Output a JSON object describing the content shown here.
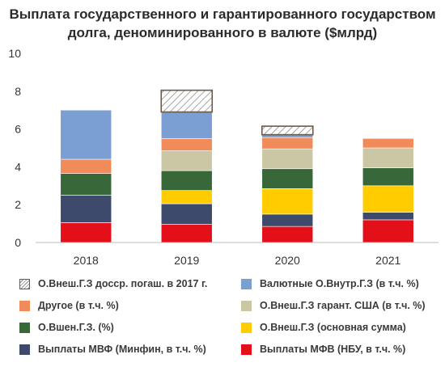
{
  "title": "Выплата государственного и гарантированного государством долга, деноминированного в валюте ($млрд)",
  "chart_data": {
    "type": "bar",
    "stacked": true,
    "categories": [
      "2018",
      "2019",
      "2020",
      "2021"
    ],
    "ylim": [
      0,
      10
    ],
    "yticks": [
      0,
      2,
      4,
      6,
      8,
      10
    ],
    "grid": false,
    "legend_position": "bottom",
    "series": [
      {
        "name": "Выплаты МФВ (НБУ, в т.ч. %)",
        "color": "#e3101a",
        "values": [
          1.05,
          0.97,
          0.85,
          1.2
        ]
      },
      {
        "name": "Выплаты МВФ (Минфин, в т.ч. %)",
        "color": "#3d4a6b",
        "values": [
          1.45,
          1.08,
          0.65,
          0.4
        ]
      },
      {
        "name": "О.Внеш.Г.З (основная сумма)",
        "color": "#ffcc00",
        "values": [
          0,
          0.7,
          1.35,
          1.4
        ]
      },
      {
        "name": "О.Вшен.Г.З. (%)",
        "color": "#38683a",
        "values": [
          1.15,
          1.05,
          1.05,
          0.95
        ]
      },
      {
        "name": "О.Внеш.Г.З гарант. США (в т.ч. %)",
        "color": "#cbc7a5",
        "values": [
          0,
          1.05,
          1.05,
          1.05
        ]
      },
      {
        "name": "Другое (в т.ч. %)",
        "color": "#f28b5a",
        "values": [
          0.75,
          0.65,
          0.6,
          0.5
        ]
      },
      {
        "name": "Валютные О.Внутр.Г.З (в т.ч. %)",
        "color": "#7b9fd3",
        "values": [
          2.6,
          1.4,
          0.15,
          0
        ]
      },
      {
        "name": "О.Внеш.Г.З досср. погаш. в 2017 г.",
        "color": "#ffffff",
        "pattern": "hatch",
        "values": [
          0,
          1.15,
          0.45,
          0
        ]
      }
    ]
  },
  "legend": [
    {
      "label": "О.Внеш.Г.З досср. погаш. в 2017 г.",
      "color": "#ffffff",
      "pattern": "hatch"
    },
    {
      "label": "Валютные О.Внутр.Г.З (в т.ч. %)",
      "color": "#7b9fd3"
    },
    {
      "label": "Другое (в т.ч. %)",
      "color": "#f28b5a"
    },
    {
      "label": "О.Внеш.Г.З гарант. США (в т.ч. %)",
      "color": "#cbc7a5"
    },
    {
      "label": "О.Вшен.Г.З. (%)",
      "color": "#38683a"
    },
    {
      "label": "О.Внеш.Г.З (основная сумма)",
      "color": "#ffcc00"
    },
    {
      "label": "Выплаты МВФ (Минфин, в т.ч. %)",
      "color": "#3d4a6b"
    },
    {
      "label": "Выплаты МФВ (НБУ, в т.ч. %)",
      "color": "#e3101a"
    }
  ]
}
